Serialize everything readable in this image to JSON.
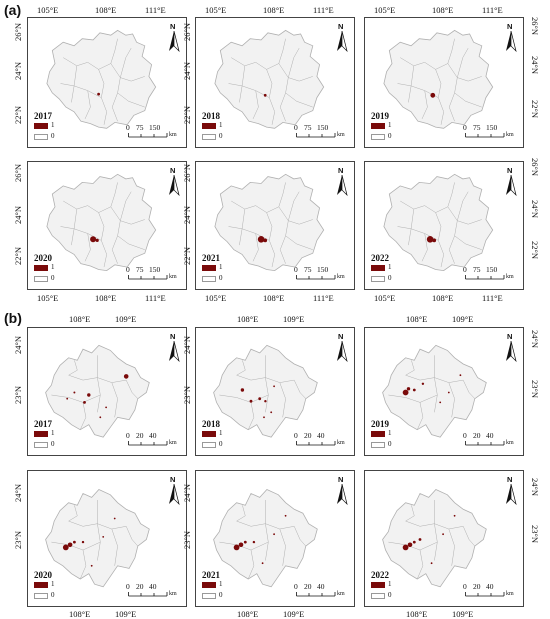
{
  "part_labels": {
    "a": "(a)",
    "b": "(b)"
  },
  "a": {
    "top_lon": [
      {
        "text": "105°E"
      },
      {
        "text": "108°E"
      },
      {
        "text": "111°E"
      },
      {
        "text": "105°E"
      },
      {
        "text": "108°E"
      },
      {
        "text": "111°E"
      },
      {
        "text": "105°E"
      },
      {
        "text": "108°E"
      },
      {
        "text": "111°E"
      }
    ],
    "bottom_lon": [
      {
        "text": "105°E"
      },
      {
        "text": "108°E"
      },
      {
        "text": "111°E"
      },
      {
        "text": "105°E"
      },
      {
        "text": "108°E"
      },
      {
        "text": "111°E"
      },
      {
        "text": "105°E"
      },
      {
        "text": "108°E"
      },
      {
        "text": "111°E"
      }
    ],
    "lat": [
      "26°N",
      "24°N",
      "22°N"
    ],
    "years": [
      "2017",
      "2018",
      "2019",
      "2020",
      "2021",
      "2022"
    ],
    "scale": {
      "ticks": [
        "0",
        "75",
        "150"
      ],
      "unit": "km"
    }
  },
  "b": {
    "top_lon": [
      {
        "text": "108°E"
      },
      {
        "text": "109°E"
      },
      {
        "text": "108°E"
      },
      {
        "text": "109°E"
      },
      {
        "text": "108°E"
      },
      {
        "text": "109°E"
      }
    ],
    "bottom_lon": [
      {
        "text": "108°E"
      },
      {
        "text": "109°E"
      },
      {
        "text": "108°E"
      },
      {
        "text": "109°E"
      },
      {
        "text": "108°E"
      },
      {
        "text": "109°E"
      }
    ],
    "lat": [
      "24°N",
      "23°N"
    ],
    "years": [
      "2017",
      "2018",
      "2019",
      "2020",
      "2021",
      "2022"
    ],
    "scale": {
      "ticks": [
        "0",
        "20",
        "40"
      ],
      "unit": "km"
    }
  },
  "legend": {
    "one": "1",
    "zero": "0"
  },
  "north_letter": "N",
  "colors": {
    "class_1": "#7a0a0a",
    "land": "#f2f2f2",
    "boundary": "#b0b0b0"
  }
}
